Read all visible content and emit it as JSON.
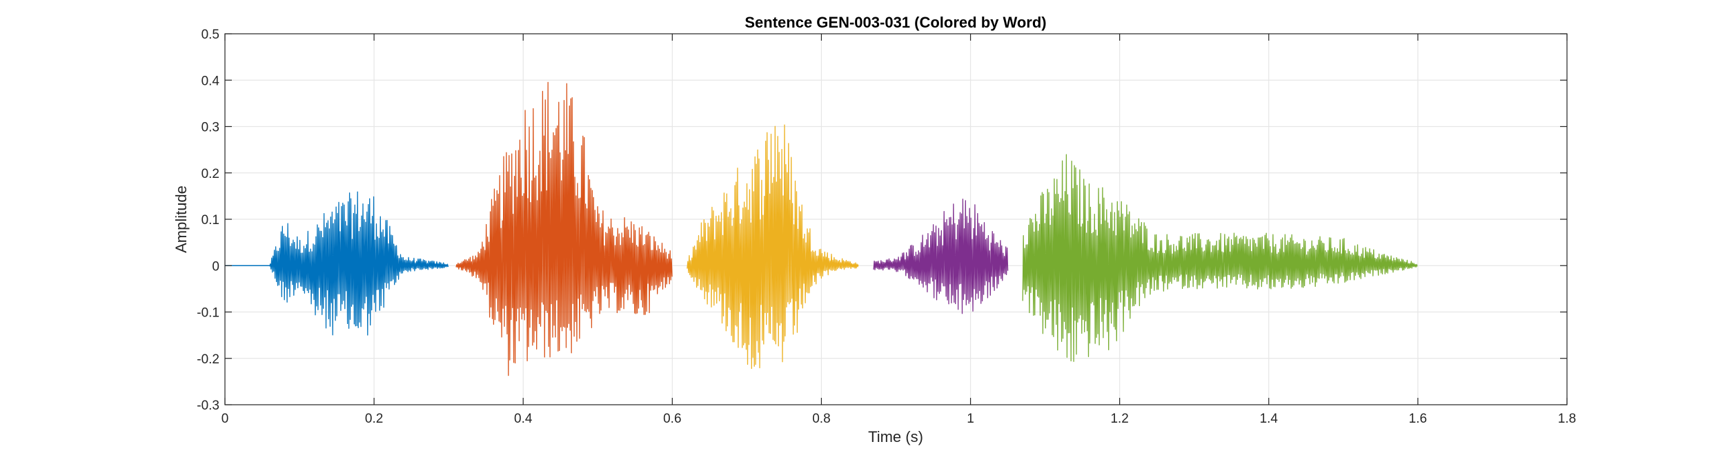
{
  "chart_data": {
    "type": "line",
    "title": "Sentence GEN-003-031 (Colored by Word)",
    "xlabel": "Time (s)",
    "ylabel": "Amplitude",
    "xlim": [
      0,
      1.8
    ],
    "ylim": [
      -0.3,
      0.5
    ],
    "xticks": [
      0,
      0.2,
      0.4,
      0.6,
      0.8,
      1,
      1.2,
      1.4,
      1.6,
      1.8
    ],
    "xtick_labels": [
      "0",
      "0.2",
      "0.4",
      "0.6",
      "0.8",
      "1",
      "1.2",
      "1.4",
      "1.6",
      "1.8"
    ],
    "yticks": [
      -0.3,
      -0.2,
      -0.1,
      0,
      0.1,
      0.2,
      0.3,
      0.4,
      0.5
    ],
    "ytick_labels": [
      "-0.3",
      "-0.2",
      "-0.1",
      "0",
      "0.1",
      "0.2",
      "0.3",
      "0.4",
      "0.5"
    ],
    "grid": true,
    "legend": "none",
    "series": [
      {
        "color": "#0072BD",
        "x": [
          0,
          0.06,
          0.08,
          0.1,
          0.12,
          0.14,
          0.16,
          0.18,
          0.2,
          0.22,
          0.24,
          0.26,
          0.28,
          0.3
        ],
        "upper": [
          0,
          0.002,
          0.11,
          0.06,
          0.09,
          0.13,
          0.15,
          0.17,
          0.16,
          0.09,
          0.02,
          0.015,
          0.01,
          0.005
        ],
        "lower": [
          0,
          -0.002,
          -0.09,
          -0.05,
          -0.12,
          -0.15,
          -0.15,
          -0.17,
          -0.14,
          -0.07,
          -0.015,
          -0.01,
          -0.008,
          -0.004
        ]
      },
      {
        "color": "#D95319",
        "x": [
          0.31,
          0.34,
          0.36,
          0.38,
          0.4,
          0.42,
          0.44,
          0.46,
          0.48,
          0.5,
          0.52,
          0.54,
          0.56,
          0.58,
          0.6
        ],
        "upper": [
          0.005,
          0.03,
          0.16,
          0.27,
          0.37,
          0.39,
          0.43,
          0.4,
          0.3,
          0.13,
          0.11,
          0.11,
          0.09,
          0.06,
          0.03
        ],
        "lower": [
          -0.005,
          -0.03,
          -0.14,
          -0.24,
          -0.22,
          -0.21,
          -0.2,
          -0.2,
          -0.17,
          -0.12,
          -0.1,
          -0.11,
          -0.12,
          -0.08,
          -0.03
        ]
      },
      {
        "color": "#EDB120",
        "x": [
          0.62,
          0.64,
          0.66,
          0.68,
          0.7,
          0.72,
          0.74,
          0.76,
          0.78,
          0.8,
          0.82,
          0.85
        ],
        "upper": [
          0.01,
          0.1,
          0.15,
          0.2,
          0.24,
          0.28,
          0.39,
          0.25,
          0.1,
          0.04,
          0.02,
          0.005
        ],
        "lower": [
          -0.01,
          -0.07,
          -0.11,
          -0.17,
          -0.22,
          -0.24,
          -0.24,
          -0.2,
          -0.08,
          -0.03,
          -0.01,
          -0.005
        ]
      },
      {
        "color": "#7E2F8E",
        "x": [
          0.87,
          0.89,
          0.91,
          0.93,
          0.95,
          0.97,
          0.99,
          1.01,
          1.03,
          1.05
        ],
        "upper": [
          0.01,
          0.015,
          0.03,
          0.06,
          0.09,
          0.13,
          0.16,
          0.13,
          0.08,
          0.04
        ],
        "lower": [
          -0.01,
          -0.01,
          -0.02,
          -0.04,
          -0.07,
          -0.1,
          -0.11,
          -0.1,
          -0.06,
          -0.03
        ]
      },
      {
        "color": "#77AC30",
        "x": [
          1.07,
          1.1,
          1.13,
          1.16,
          1.19,
          1.22,
          1.25,
          1.28,
          1.35,
          1.4,
          1.45,
          1.5,
          1.55,
          1.6
        ],
        "upper": [
          0.1,
          0.17,
          0.25,
          0.18,
          0.17,
          0.12,
          0.07,
          0.07,
          0.07,
          0.07,
          0.065,
          0.06,
          0.03,
          0.005
        ],
        "lower": [
          -0.08,
          -0.16,
          -0.23,
          -0.2,
          -0.19,
          -0.1,
          -0.06,
          -0.05,
          -0.05,
          -0.055,
          -0.05,
          -0.04,
          -0.02,
          -0.003
        ]
      }
    ]
  }
}
